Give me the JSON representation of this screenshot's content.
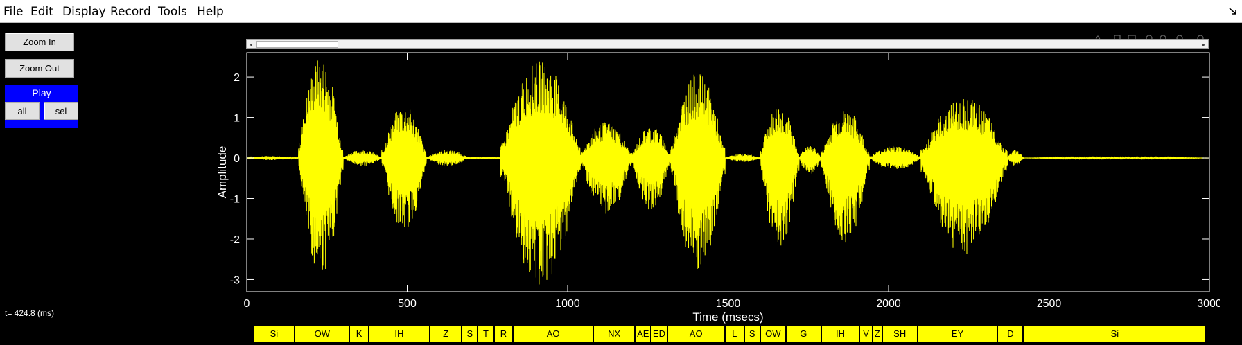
{
  "menu": {
    "items": [
      {
        "label": "File",
        "name": "menu-file"
      },
      {
        "label": "Edit",
        "name": "menu-edit"
      },
      {
        "label": "Display",
        "name": "menu-display"
      },
      {
        "label": "Record",
        "name": "menu-record"
      },
      {
        "label": "Tools",
        "name": "menu-tools"
      },
      {
        "label": "Help",
        "name": "menu-help"
      }
    ],
    "corner_icon": "dock-arrow-icon"
  },
  "controls": {
    "zoom_in": "Zoom In",
    "zoom_out": "Zoom Out",
    "play_label": "Play",
    "play_all": "all",
    "play_sel": "sel"
  },
  "status": {
    "time_readout": "t= 424.8 (ms)"
  },
  "scrollbar": {
    "left_arrow": "◂",
    "right_arrow": "▸"
  },
  "colors": {
    "waveform": "#ffff00",
    "axes": "#ffffff",
    "background": "#000000",
    "play_panel": "#0000ff",
    "phone_label": "#ffff00"
  },
  "chart_data": {
    "type": "line",
    "xlabel": "Time (msecs)",
    "ylabel": "Amplitude",
    "xlim": [
      0,
      3000
    ],
    "ylim": [
      -3.3,
      2.6
    ],
    "xticks": [
      0,
      500,
      1000,
      1500,
      2000,
      2500,
      3000
    ],
    "yticks": [
      -3,
      -2,
      -1,
      0,
      1,
      2
    ],
    "grid": false,
    "series": [
      {
        "envelope": [
          {
            "start": 0,
            "end": 150,
            "peak": 0.05,
            "trough": -0.05
          },
          {
            "start": 160,
            "end": 300,
            "peak": 2.5,
            "trough": -2.9
          },
          {
            "start": 300,
            "end": 420,
            "peak": 0.2,
            "trough": -0.2
          },
          {
            "start": 420,
            "end": 560,
            "peak": 1.3,
            "trough": -1.8
          },
          {
            "start": 560,
            "end": 690,
            "peak": 0.2,
            "trough": -0.2
          },
          {
            "start": 790,
            "end": 1040,
            "peak": 2.4,
            "trough": -3.2
          },
          {
            "start": 1040,
            "end": 1200,
            "peak": 0.9,
            "trough": -1.4
          },
          {
            "start": 1200,
            "end": 1320,
            "peak": 0.8,
            "trough": -1.3
          },
          {
            "start": 1320,
            "end": 1490,
            "peak": 2.1,
            "trough": -2.9
          },
          {
            "start": 1490,
            "end": 1600,
            "peak": 0.1,
            "trough": -0.1
          },
          {
            "start": 1600,
            "end": 1720,
            "peak": 1.3,
            "trough": -2.2
          },
          {
            "start": 1720,
            "end": 1790,
            "peak": 0.3,
            "trough": -0.4
          },
          {
            "start": 1790,
            "end": 1940,
            "peak": 1.2,
            "trough": -2.1
          },
          {
            "start": 1940,
            "end": 2100,
            "peak": 0.3,
            "trough": -0.3
          },
          {
            "start": 2100,
            "end": 2370,
            "peak": 1.5,
            "trough": -2.4
          },
          {
            "start": 2370,
            "end": 2420,
            "peak": 0.2,
            "trough": -0.2
          },
          {
            "start": 2420,
            "end": 3000,
            "peak": 0.02,
            "trough": -0.02
          }
        ]
      }
    ]
  },
  "phones": [
    {
      "label": "Si",
      "start": 20,
      "end": 150
    },
    {
      "label": "OW",
      "start": 150,
      "end": 320
    },
    {
      "label": "K",
      "start": 320,
      "end": 380
    },
    {
      "label": "IH",
      "start": 380,
      "end": 570
    },
    {
      "label": "Z",
      "start": 570,
      "end": 670
    },
    {
      "label": "S",
      "start": 670,
      "end": 720
    },
    {
      "label": "T",
      "start": 720,
      "end": 770
    },
    {
      "label": "R",
      "start": 770,
      "end": 830
    },
    {
      "label": "AO",
      "start": 830,
      "end": 1080
    },
    {
      "label": "NX",
      "start": 1080,
      "end": 1210
    },
    {
      "label": "AE",
      "start": 1210,
      "end": 1260
    },
    {
      "label": "ED",
      "start": 1260,
      "end": 1310
    },
    {
      "label": "AO",
      "start": 1310,
      "end": 1490
    },
    {
      "label": "L",
      "start": 1490,
      "end": 1550
    },
    {
      "label": "S",
      "start": 1550,
      "end": 1600
    },
    {
      "label": "OW",
      "start": 1600,
      "end": 1680
    },
    {
      "label": "G",
      "start": 1680,
      "end": 1790
    },
    {
      "label": "IH",
      "start": 1790,
      "end": 1910
    },
    {
      "label": "V",
      "start": 1910,
      "end": 1950
    },
    {
      "label": "Z",
      "start": 1950,
      "end": 1980
    },
    {
      "label": "SH",
      "start": 1980,
      "end": 2090
    },
    {
      "label": "EY",
      "start": 2090,
      "end": 2340
    },
    {
      "label": "D",
      "start": 2340,
      "end": 2420
    },
    {
      "label": "Si",
      "start": 2420,
      "end": 2990
    }
  ]
}
